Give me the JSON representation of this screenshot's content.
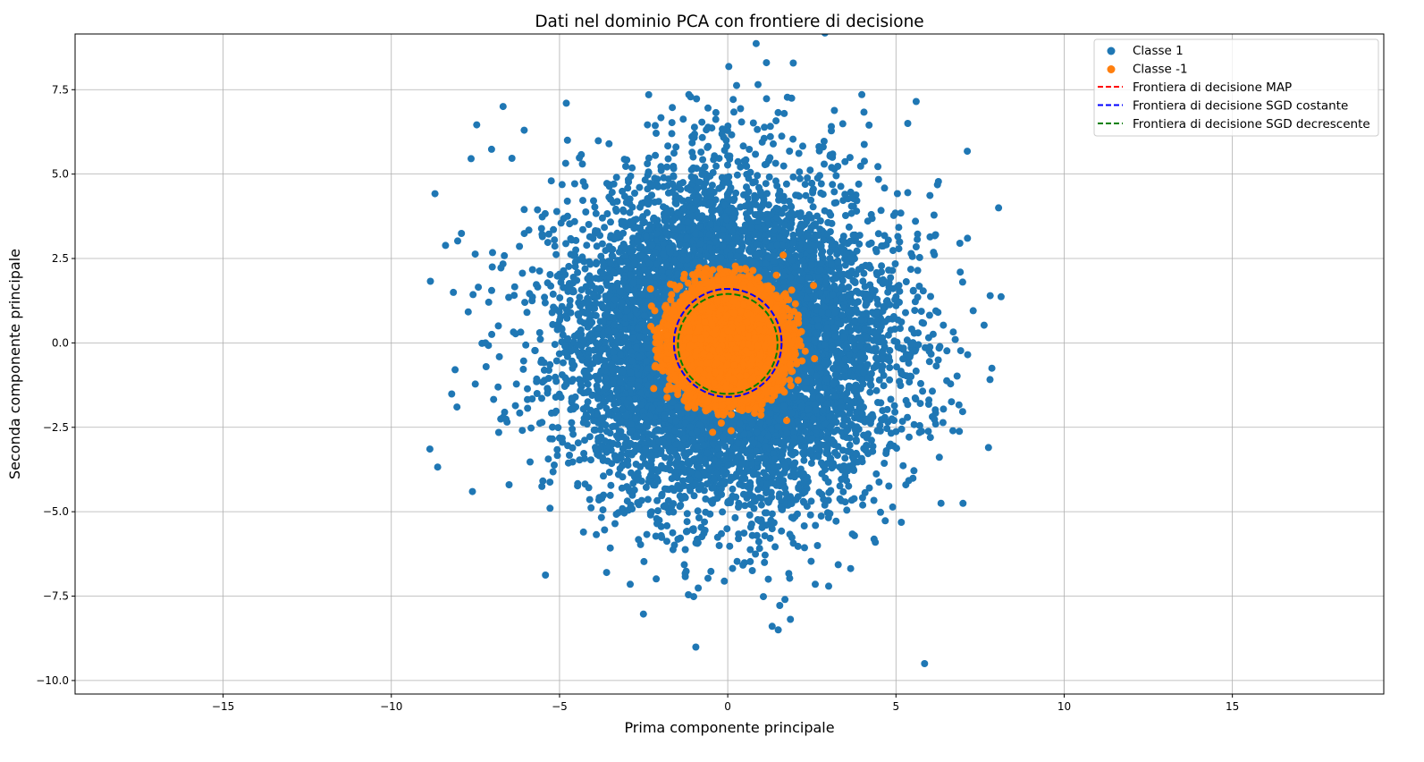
{
  "chart_data": {
    "type": "scatter",
    "title": "Dati nel dominio PCA con frontiere di decisione",
    "xlabel": "Prima componente principale",
    "ylabel": "Seconda componente principale",
    "xlim": [
      -19.4,
      19.5
    ],
    "ylim": [
      -10.4,
      9.15
    ],
    "xticks": [
      -15,
      -10,
      -5,
      0,
      5,
      10,
      15
    ],
    "xtick_labels": [
      "−15",
      "−10",
      "−5",
      "0",
      "5",
      "10",
      "15"
    ],
    "yticks": [
      -10,
      -7.5,
      -5,
      -2.5,
      0,
      2.5,
      5,
      7.5
    ],
    "ytick_labels": [
      "−10.0",
      "−7.5",
      "−5.0",
      "−2.5",
      "0.0",
      "2.5",
      "5.0",
      "7.5"
    ],
    "grid": true,
    "legend_position": "top-right",
    "series": [
      {
        "name": "Classe 1",
        "kind": "scatter",
        "color": "#1f77b4",
        "distribution": "dense roughly circular cloud centred at origin, extends to radius ~8",
        "points": [
          [
            -8.05,
            -1.9
          ],
          [
            1.15,
            8.3
          ],
          [
            8.05,
            4.0
          ],
          [
            5.85,
            -9.5
          ],
          [
            1.5,
            -8.5
          ],
          [
            -6.05,
            6.3
          ],
          [
            -4.8,
            7.1
          ],
          [
            5.6,
            7.15
          ],
          [
            0.9,
            7.65
          ],
          [
            -2.35,
            7.35
          ],
          [
            7.85,
            -0.75
          ],
          [
            7.75,
            -3.1
          ],
          [
            -7.2,
            0.0
          ],
          [
            -6.5,
            -4.2
          ],
          [
            1.7,
            -7.6
          ],
          [
            -3.6,
            -6.8
          ],
          [
            -2.9,
            -7.15
          ],
          [
            2.6,
            -7.15
          ],
          [
            7.8,
            1.4
          ],
          [
            6.9,
            2.95
          ],
          [
            -7.0,
            2.25
          ],
          [
            5.35,
            6.5
          ],
          [
            4.2,
            6.45
          ],
          [
            -6.05,
            3.95
          ]
        ]
      },
      {
        "name": "Classe -1",
        "kind": "scatter",
        "color": "#ff7f0e",
        "distribution": "dense disc centred at origin, radius ~2.5",
        "points": [
          [
            -0.45,
            -2.65
          ],
          [
            2.55,
            1.7
          ],
          [
            1.75,
            -2.3
          ],
          [
            -2.2,
            -1.35
          ],
          [
            -2.3,
            1.6
          ],
          [
            1.65,
            2.6
          ]
        ]
      },
      {
        "name": "Frontiera di decisione MAP",
        "kind": "circle",
        "color": "#ff0000",
        "center": [
          0,
          0
        ],
        "radius": 1.6
      },
      {
        "name": "Frontiera di decisione SGD costante",
        "kind": "circle",
        "color": "#0000ff",
        "center": [
          0,
          0
        ],
        "radius": 1.6
      },
      {
        "name": "Frontiera di decisione SGD decrescente",
        "kind": "circle",
        "color": "#008000",
        "center": [
          0,
          -0.03
        ],
        "radius": 1.48
      }
    ]
  }
}
